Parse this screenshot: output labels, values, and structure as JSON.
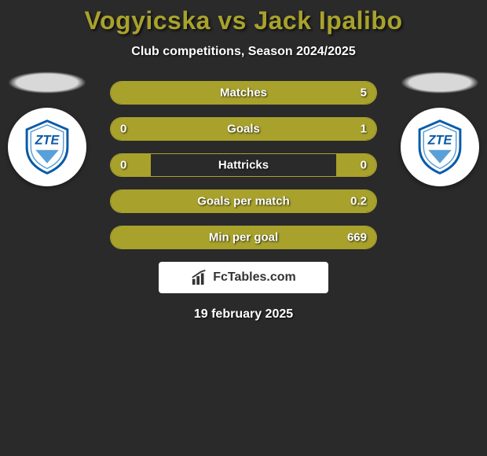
{
  "title": "Vogyicska vs Jack Ipalibo",
  "subtitle": "Club competitions, Season 2024/2025",
  "date": "19 february 2025",
  "brand": "FcTables.com",
  "colors": {
    "accent": "#a8a22c",
    "background": "#2a2a2a",
    "text": "#ffffff",
    "logo_bg": "#ffffff",
    "logo_primary": "#0a5aa8",
    "logo_secondary": "#5aa0d8"
  },
  "players": {
    "left": {
      "club_logo_text": "ZTE"
    },
    "right": {
      "club_logo_text": "ZTE"
    }
  },
  "stats": [
    {
      "label": "Matches",
      "left_value": "",
      "right_value": "5",
      "left_bar_pct": 45,
      "right_bar_pct": 55
    },
    {
      "label": "Goals",
      "left_value": "0",
      "right_value": "1",
      "left_bar_pct": 15,
      "right_bar_pct": 85
    },
    {
      "label": "Hattricks",
      "left_value": "0",
      "right_value": "0",
      "left_bar_pct": 15,
      "right_bar_pct": 15
    },
    {
      "label": "Goals per match",
      "left_value": "",
      "right_value": "0.2",
      "left_bar_pct": 45,
      "right_bar_pct": 55
    },
    {
      "label": "Min per goal",
      "left_value": "",
      "right_value": "669",
      "left_bar_pct": 45,
      "right_bar_pct": 55
    }
  ]
}
